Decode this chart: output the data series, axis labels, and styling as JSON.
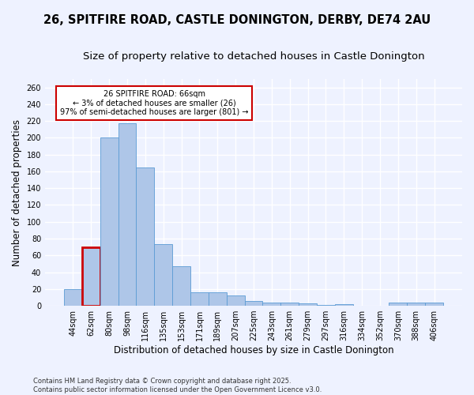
{
  "title_line1": "26, SPITFIRE ROAD, CASTLE DONINGTON, DERBY, DE74 2AU",
  "title_line2": "Size of property relative to detached houses in Castle Donington",
  "xlabel": "Distribution of detached houses by size in Castle Donington",
  "ylabel": "Number of detached properties",
  "footer_line1": "Contains HM Land Registry data © Crown copyright and database right 2025.",
  "footer_line2": "Contains public sector information licensed under the Open Government Licence v3.0.",
  "categories": [
    "44sqm",
    "62sqm",
    "80sqm",
    "98sqm",
    "116sqm",
    "135sqm",
    "153sqm",
    "171sqm",
    "189sqm",
    "207sqm",
    "225sqm",
    "243sqm",
    "261sqm",
    "279sqm",
    "297sqm",
    "316sqm",
    "334sqm",
    "352sqm",
    "370sqm",
    "388sqm",
    "406sqm"
  ],
  "values": [
    20,
    70,
    200,
    217,
    165,
    73,
    47,
    16,
    16,
    12,
    6,
    4,
    4,
    3,
    1,
    2,
    0,
    0,
    4,
    4,
    4
  ],
  "bar_color": "#aec6e8",
  "bar_edge_color": "#5b9bd5",
  "highlight_index": 1,
  "highlight_bar_edge_color": "#cc0000",
  "annotation_text": "26 SPITFIRE ROAD: 66sqm\n← 3% of detached houses are smaller (26)\n97% of semi-detached houses are larger (801) →",
  "annotation_box_color": "white",
  "annotation_box_edge_color": "#cc0000",
  "ylim": [
    0,
    270
  ],
  "yticks": [
    0,
    20,
    40,
    60,
    80,
    100,
    120,
    140,
    160,
    180,
    200,
    220,
    240,
    260
  ],
  "bg_color": "#eef2ff",
  "plot_bg_color": "#eef2ff",
  "grid_color": "white",
  "title_fontsize": 10.5,
  "subtitle_fontsize": 9.5,
  "tick_fontsize": 7,
  "axis_label_fontsize": 8.5,
  "footer_fontsize": 6,
  "annotation_fontsize": 7
}
